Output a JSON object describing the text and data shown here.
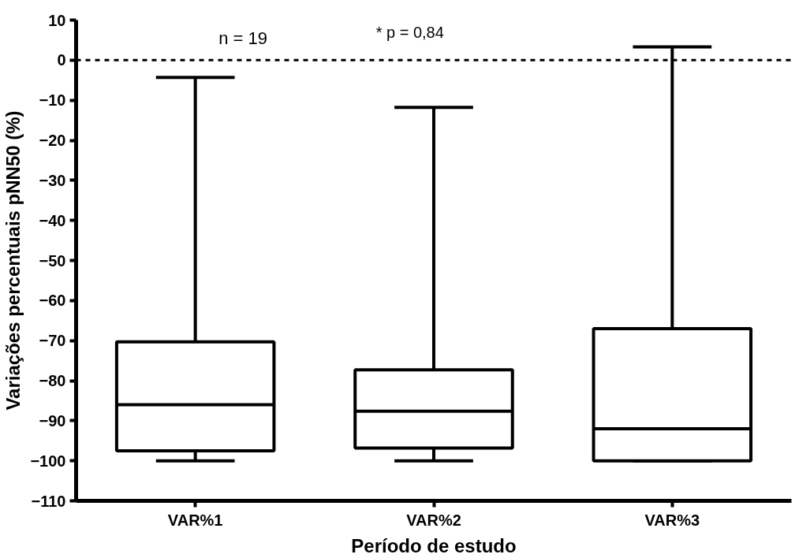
{
  "chart_data": {
    "type": "box",
    "xlabel": "Período de estudo",
    "ylabel": "Variações percentuais pNN50 (%)",
    "categories": [
      "VAR%1",
      "VAR%2",
      "VAR%3"
    ],
    "boxes": [
      {
        "low": -100,
        "q1": -97.5,
        "median": -86,
        "q3": -70.3,
        "high": -4.3
      },
      {
        "low": -100,
        "q1": -96.8,
        "median": -87.6,
        "q3": -77.3,
        "high": -11.8
      },
      {
        "low": -100,
        "q1": -100,
        "median": -92,
        "q3": -67,
        "high": 3.3
      }
    ],
    "ylim": [
      -110,
      10
    ],
    "yticks": [
      -110,
      -100,
      -90,
      -80,
      -70,
      -60,
      -50,
      -40,
      -30,
      -20,
      -10,
      0,
      10
    ],
    "ref_lines": [
      {
        "axis": "y",
        "value": 0,
        "line_style": "dotted",
        "color": "#000000"
      }
    ],
    "annotations": [
      "n = 19",
      "* p = 0,84"
    ],
    "grid": false
  }
}
